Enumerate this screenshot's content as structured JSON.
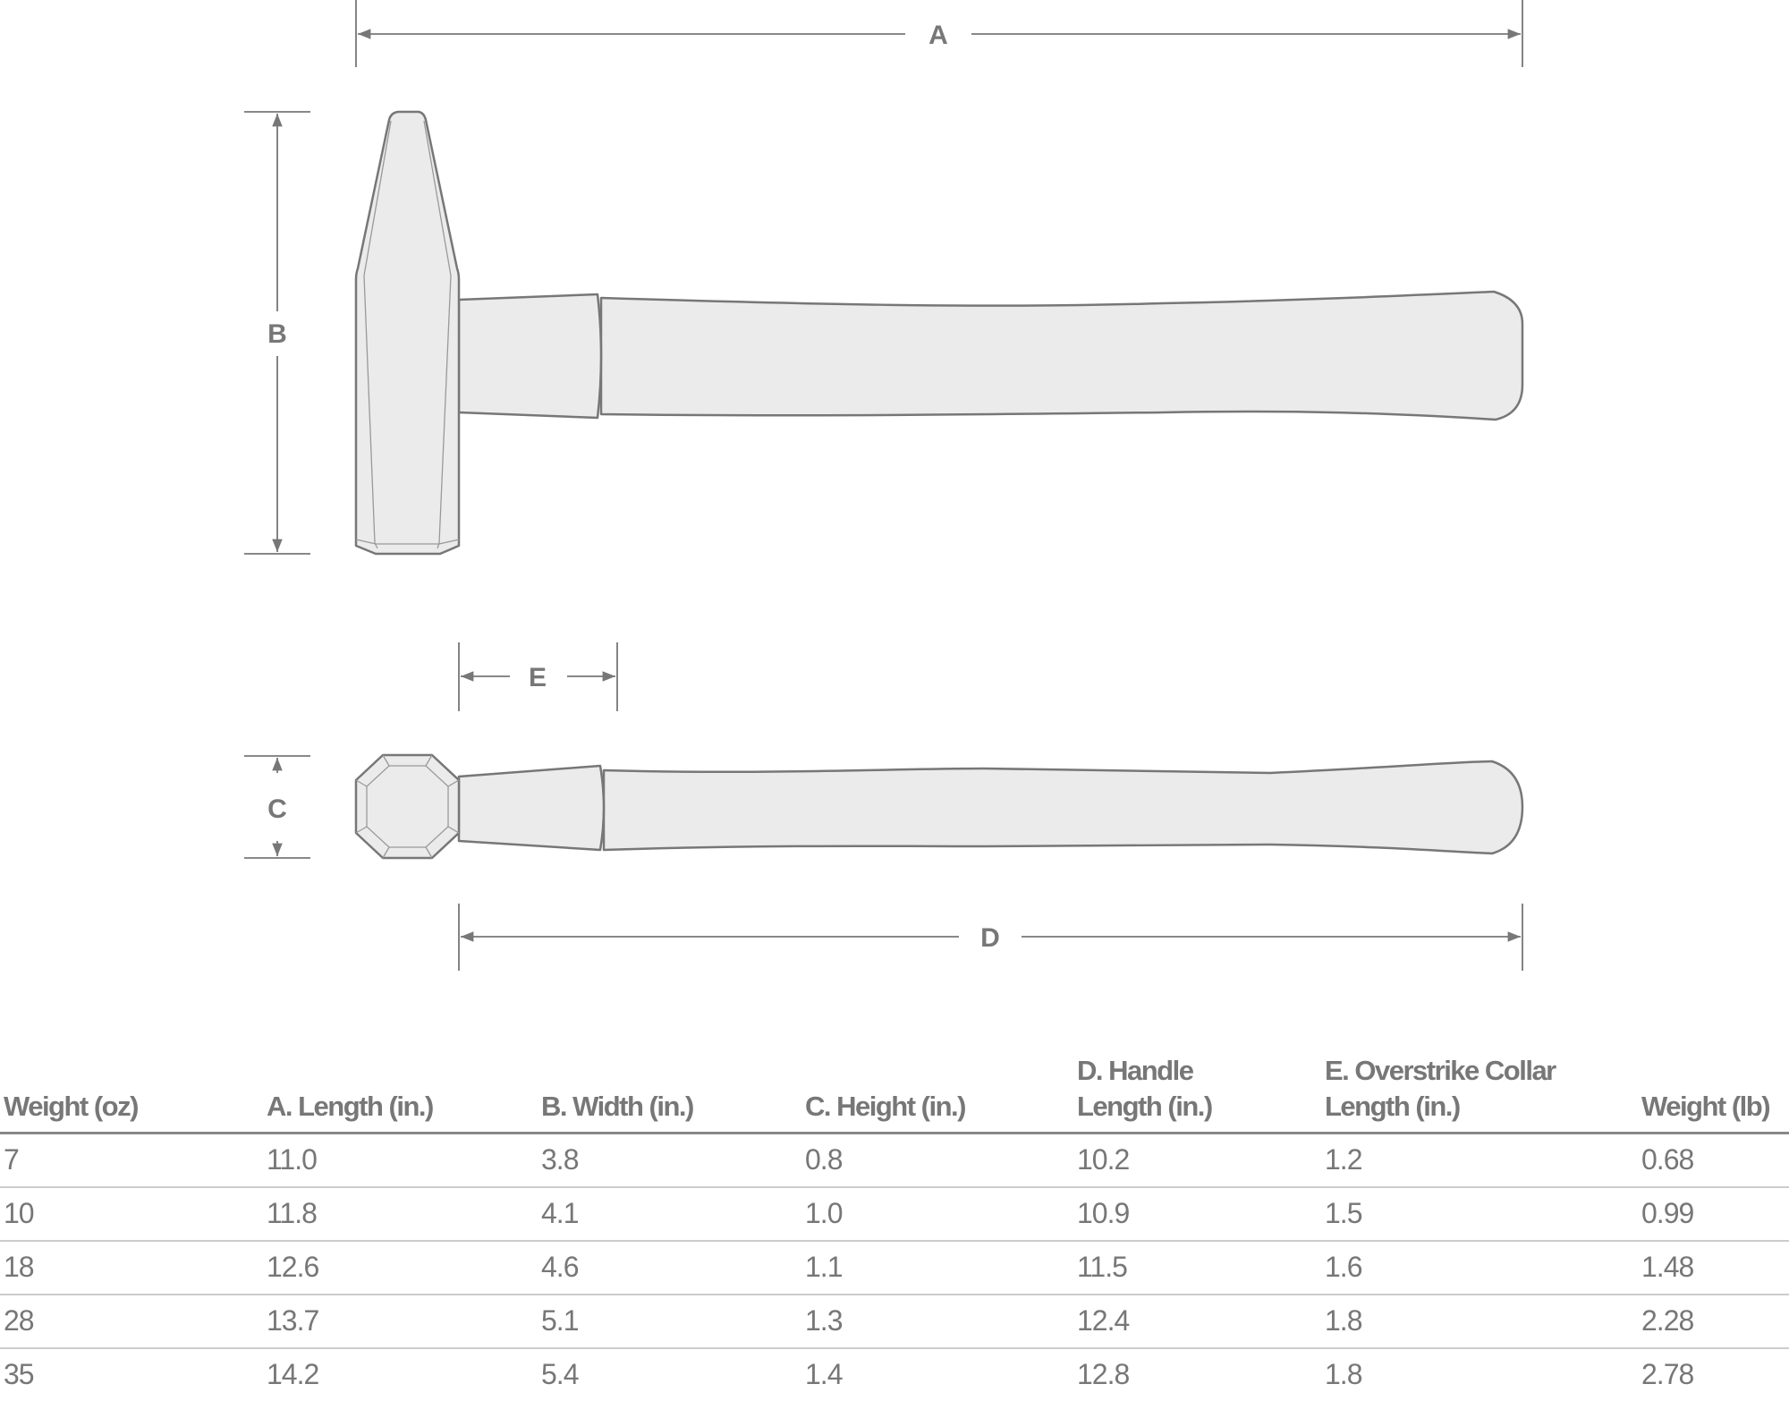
{
  "diagram": {
    "labels": {
      "a": "A",
      "b": "B",
      "c": "C",
      "d": "D",
      "e": "E"
    },
    "colors": {
      "outline": "#777777",
      "fill": "#ebebeb"
    }
  },
  "table": {
    "headers": [
      {
        "line1": "",
        "line2": "Weight (oz)"
      },
      {
        "line1": "",
        "line2": "A. Length (in.)"
      },
      {
        "line1": "",
        "line2": "B. Width (in.)"
      },
      {
        "line1": "",
        "line2": "C. Height (in.)"
      },
      {
        "line1": "D. Handle",
        "line2": "Length (in.)"
      },
      {
        "line1": "E. Overstrike Collar",
        "line2": "Length (in.)"
      },
      {
        "line1": "",
        "line2": "Weight (lb)"
      }
    ],
    "rows": [
      [
        "7",
        "11.0",
        "3.8",
        "0.8",
        "10.2",
        "1.2",
        "0.68"
      ],
      [
        "10",
        "11.8",
        "4.1",
        "1.0",
        "10.9",
        "1.5",
        "0.99"
      ],
      [
        "18",
        "12.6",
        "4.6",
        "1.1",
        "11.5",
        "1.6",
        "1.48"
      ],
      [
        "28",
        "13.7",
        "5.1",
        "1.3",
        "12.4",
        "1.8",
        "2.28"
      ],
      [
        "35",
        "14.2",
        "5.4",
        "1.4",
        "12.8",
        "1.8",
        "2.78"
      ]
    ]
  }
}
